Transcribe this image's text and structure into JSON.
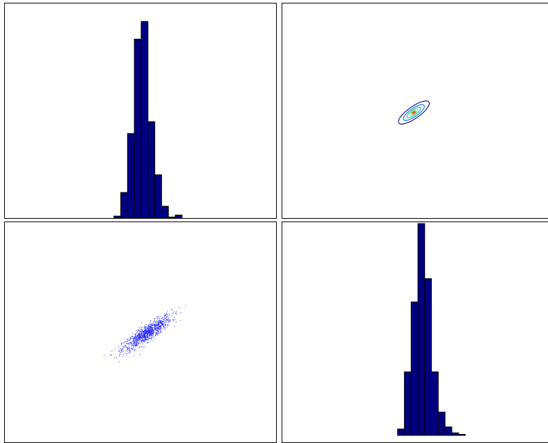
{
  "colors": {
    "bar_fill": "#000080",
    "bar_edge": "#000000",
    "scatter_point": "#2020ff",
    "contour_levels": [
      "#00008b",
      "#0070e0",
      "#00c8c8",
      "#80e060",
      "#e8a000",
      "#d02020"
    ]
  },
  "chart_data": [
    {
      "panel": "top-left",
      "type": "bar",
      "histogram": true,
      "title": "",
      "xlabel": "",
      "ylabel": "",
      "grid": false,
      "xlim": [
        -10,
        10
      ],
      "ylim": [
        0,
        1.0
      ],
      "bin_edges": [
        -2.0,
        -1.5,
        -1.0,
        -0.5,
        0.0,
        0.5,
        1.0,
        1.5,
        2.0,
        2.5,
        3.0,
        3.5
      ],
      "values": [
        0.01,
        0.13,
        0.43,
        0.91,
        1.0,
        0.49,
        0.22,
        0.06,
        0.005,
        0.015,
        0.0
      ]
    },
    {
      "panel": "top-right",
      "type": "contour",
      "title": "",
      "xlabel": "",
      "ylabel": "",
      "grid": false,
      "xlim": [
        -10,
        10
      ],
      "ylim": [
        -10,
        10
      ],
      "center": [
        -0.3,
        -0.1
      ],
      "correlation_angle_deg": 35,
      "levels": [
        {
          "level": 1,
          "semi_axes": [
            1.35,
            0.55
          ]
        },
        {
          "level": 2,
          "semi_axes": [
            0.92,
            0.38
          ]
        },
        {
          "level": 3,
          "semi_axes": [
            0.6,
            0.25
          ]
        },
        {
          "level": 4,
          "semi_axes": [
            0.33,
            0.15
          ]
        },
        {
          "level": 5,
          "semi_axes": [
            0.18,
            0.1
          ]
        },
        {
          "level": 6,
          "semi_axes": [
            0.08,
            0.05
          ]
        }
      ]
    },
    {
      "panel": "bottom-left",
      "type": "scatter",
      "title": "",
      "xlabel": "",
      "ylabel": "",
      "grid": false,
      "xlim": [
        -10,
        10
      ],
      "ylim": [
        -10,
        10
      ],
      "n_points": 1000,
      "mean": [
        0.4,
        0.0
      ],
      "std": [
        0.9,
        0.8
      ],
      "correlation": 0.88
    },
    {
      "panel": "bottom-right",
      "type": "bar",
      "histogram": true,
      "title": "",
      "xlabel": "",
      "ylabel": "",
      "grid": false,
      "xlim": [
        -10,
        10
      ],
      "ylim": [
        0,
        1.0
      ],
      "bin_edges": [
        -1.5,
        -1.0,
        -0.5,
        0.0,
        0.5,
        1.0,
        1.5,
        2.0,
        2.5,
        3.0,
        3.5,
        4.0
      ],
      "values": [
        0.03,
        0.3,
        0.63,
        1.0,
        0.74,
        0.3,
        0.11,
        0.04,
        0.012,
        0.005,
        0.0
      ]
    }
  ]
}
